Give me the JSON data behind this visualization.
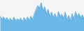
{
  "values": [
    55,
    45,
    52,
    42,
    50,
    38,
    48,
    35,
    52,
    38,
    45,
    40,
    48,
    35,
    50,
    38,
    52,
    40,
    55,
    42,
    65,
    80,
    95,
    85,
    105,
    75,
    90,
    65,
    80,
    55,
    70,
    50,
    65,
    45,
    72,
    55,
    62,
    48,
    70,
    42,
    58,
    38,
    65,
    45,
    72,
    55,
    65,
    50,
    60,
    45
  ],
  "line_color": "#4d9fd6",
  "fill_color": "#6bb8e8",
  "background_color": "#f5f5f5",
  "ylim_min": 0,
  "ylim_max": 115
}
